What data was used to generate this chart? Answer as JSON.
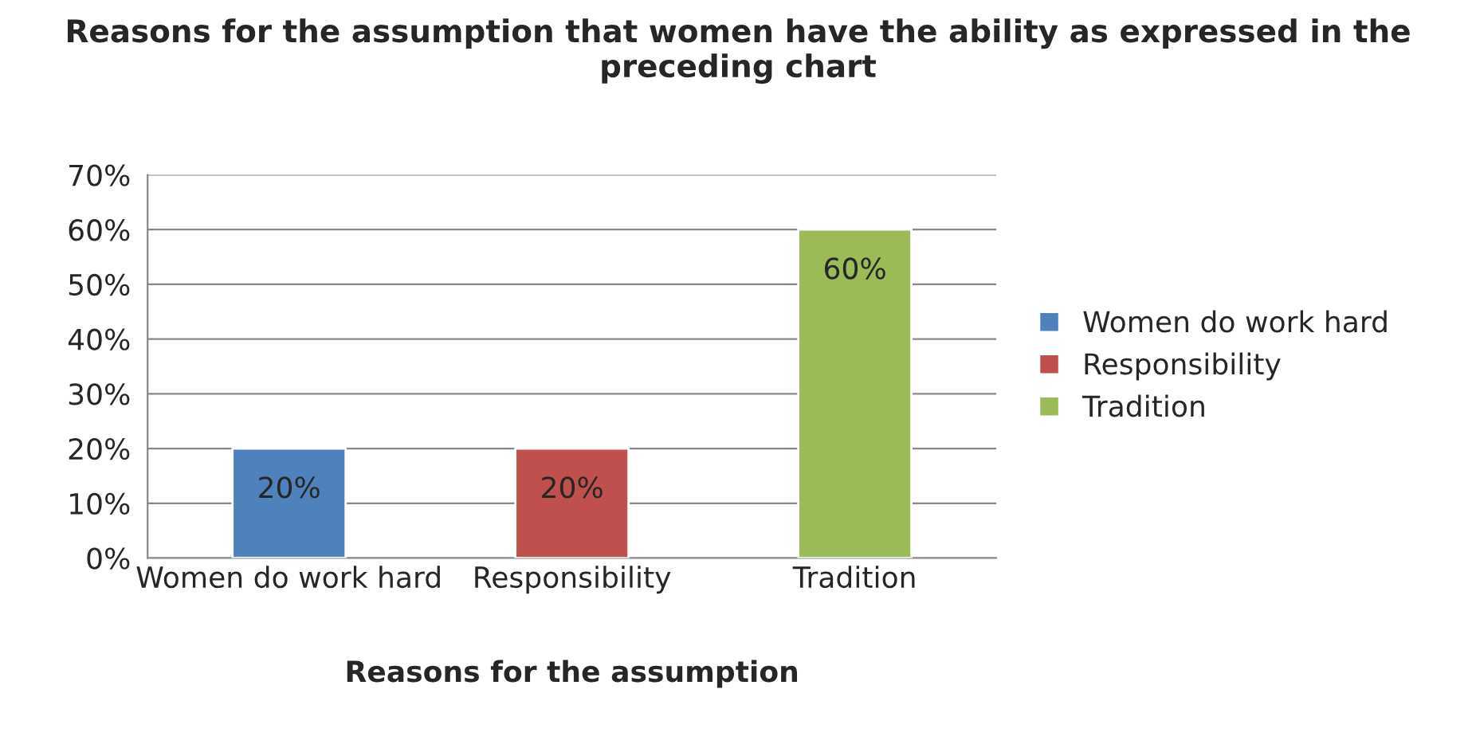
{
  "chart_data": {
    "type": "bar",
    "title": "Reasons for the assumption that women have the ability as expressed in the preceding chart",
    "xlabel": "Reasons for the assumption",
    "categories": [
      "Women do work hard",
      "Responsibility",
      "Tradition"
    ],
    "series": [
      {
        "name": "Women do work hard",
        "color": "#4f81bd",
        "values": [
          20,
          null,
          null
        ],
        "value_labels": [
          "20%",
          null,
          null
        ]
      },
      {
        "name": "Responsibility",
        "color": "#c0504d",
        "values": [
          null,
          20,
          null
        ],
        "value_labels": [
          null,
          "20%",
          null
        ]
      },
      {
        "name": "Tradition",
        "color": "#9bbb59",
        "values": [
          null,
          null,
          60
        ],
        "value_labels": [
          null,
          null,
          "60%"
        ]
      }
    ],
    "ylim": [
      0,
      70
    ],
    "yticks": [
      {
        "value": 0,
        "label": "0%"
      },
      {
        "value": 10,
        "label": "10%"
      },
      {
        "value": 20,
        "label": "20%"
      },
      {
        "value": 30,
        "label": "30%"
      },
      {
        "value": 40,
        "label": "40%"
      },
      {
        "value": 50,
        "label": "50%"
      },
      {
        "value": 60,
        "label": "60%"
      },
      {
        "value": 70,
        "label": "70%"
      }
    ],
    "grid": "y",
    "legend": "right"
  }
}
